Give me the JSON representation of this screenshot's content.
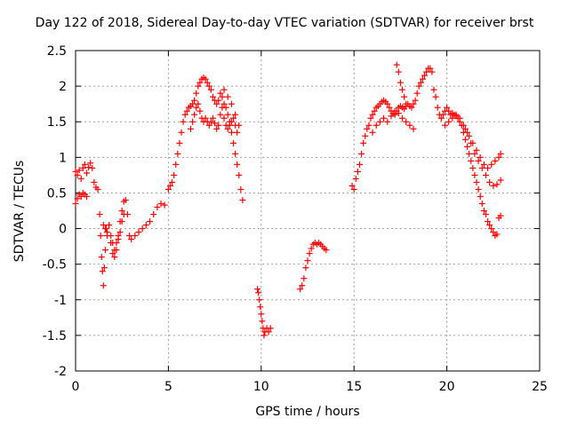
{
  "chart_data": {
    "type": "scatter",
    "title": "Day 122 of 2018, Sidereal Day-to-day VTEC variation (SDTVAR) for receiver brst",
    "xlabel": "GPS time / hours",
    "ylabel": "SDTVAR / TECUs",
    "xlim": [
      0,
      25
    ],
    "ylim": [
      -2,
      2.5
    ],
    "xticks": [
      0,
      5,
      10,
      15,
      20,
      25
    ],
    "yticks": [
      -2,
      -1.5,
      -1,
      -0.5,
      0,
      0.5,
      1,
      1.5,
      2,
      2.5
    ],
    "grid": true,
    "marker": "+",
    "color": "#ff0000",
    "series": [
      {
        "name": "SDTVAR",
        "segments": [
          {
            "x": [
              0.0,
              0.1,
              0.2,
              0.3,
              0.4,
              0.5,
              0.6,
              0.7,
              0.8,
              0.9,
              1.0,
              1.1,
              1.2
            ],
            "y": [
              0.8,
              0.75,
              0.82,
              0.7,
              0.85,
              0.9,
              0.78,
              0.86,
              0.92,
              0.85,
              0.65,
              0.58,
              0.55
            ]
          },
          {
            "x": [
              0.0,
              0.1,
              0.2,
              0.3,
              0.4,
              0.5,
              0.6
            ],
            "y": [
              0.35,
              0.42,
              0.48,
              0.45,
              0.5,
              0.48,
              0.45
            ]
          },
          {
            "x": [
              1.3,
              1.35,
              1.4,
              1.45,
              1.5,
              1.55,
              1.6,
              1.65,
              1.7,
              1.8,
              1.9,
              2.0,
              2.1,
              2.2,
              2.3,
              2.4,
              2.5,
              2.6,
              2.7,
              2.8,
              2.9,
              3.0,
              3.2,
              3.4,
              3.6,
              3.8,
              4.0,
              4.2,
              4.4,
              4.6,
              4.8
            ],
            "y": [
              0.2,
              -0.1,
              -0.4,
              -0.6,
              -0.8,
              -0.55,
              -0.3,
              0.0,
              -0.1,
              0.05,
              -0.2,
              -0.35,
              -0.4,
              -0.3,
              -0.1,
              0.1,
              0.25,
              0.38,
              0.4,
              0.2,
              -0.1,
              -0.15,
              -0.1,
              -0.05,
              0.0,
              0.05,
              0.1,
              0.2,
              0.3,
              0.35,
              0.33
            ]
          },
          {
            "x": [
              1.5,
              1.6,
              1.7,
              1.8,
              1.9,
              2.0,
              2.1,
              2.2,
              2.3,
              2.4,
              2.5,
              2.6
            ],
            "y": [
              0.05,
              0.0,
              -0.05,
              0.05,
              -0.1,
              -0.2,
              -0.3,
              -0.2,
              -0.15,
              -0.05,
              0.1,
              0.2
            ]
          },
          {
            "x": [
              5.0,
              5.1,
              5.2,
              5.3,
              5.4,
              5.5,
              5.6,
              5.7,
              5.8,
              5.9,
              6.0,
              6.1,
              6.2,
              6.3,
              6.4,
              6.5,
              6.6,
              6.7,
              6.8,
              6.9,
              7.0,
              7.1,
              7.2,
              7.3,
              7.4,
              7.5,
              7.6,
              7.7,
              7.8,
              7.9,
              8.0,
              8.1,
              8.2,
              8.3,
              8.4,
              8.5,
              8.6,
              8.7,
              8.8,
              8.9,
              9.0
            ],
            "y": [
              0.55,
              0.6,
              0.65,
              0.75,
              0.9,
              1.05,
              1.2,
              1.35,
              1.5,
              1.6,
              1.65,
              1.7,
              1.72,
              1.75,
              1.8,
              1.9,
              2.0,
              2.05,
              2.1,
              2.12,
              2.1,
              2.05,
              2.0,
              1.95,
              1.85,
              1.8,
              1.75,
              1.8,
              1.9,
              1.85,
              1.75,
              1.7,
              1.6,
              1.5,
              1.35,
              1.2,
              1.05,
              0.9,
              0.75,
              0.55,
              0.4
            ]
          },
          {
            "x": [
              6.2,
              6.3,
              6.4,
              6.5,
              6.6,
              6.7,
              6.8,
              6.9,
              7.0,
              7.1,
              7.2,
              7.3,
              7.4,
              7.5,
              7.6,
              7.7,
              7.8,
              7.9,
              8.0,
              8.1,
              8.2,
              8.3,
              8.4,
              8.5,
              8.6,
              8.7
            ],
            "y": [
              1.4,
              1.5,
              1.6,
              1.7,
              1.75,
              1.65,
              1.55,
              1.5,
              1.55,
              1.5,
              1.45,
              1.5,
              1.55,
              1.48,
              1.4,
              1.45,
              1.6,
              1.7,
              1.55,
              1.45,
              1.4,
              1.45,
              1.5,
              1.55,
              1.45,
              1.35
            ]
          },
          {
            "x": [
              8.0,
              8.2,
              8.4,
              8.6,
              8.8
            ],
            "y": [
              1.95,
              1.85,
              1.75,
              1.6,
              1.45
            ]
          },
          {
            "x": [
              9.8,
              9.85,
              9.9,
              9.95,
              10.0,
              10.05,
              10.1,
              10.15,
              10.2,
              10.3,
              10.4,
              10.5
            ],
            "y": [
              -0.85,
              -0.9,
              -1.0,
              -1.1,
              -1.2,
              -1.3,
              -1.4,
              -1.5,
              -1.45,
              -1.4,
              -1.45,
              -1.4
            ]
          },
          {
            "x": [
              12.1,
              12.2,
              12.3,
              12.4,
              12.5,
              12.6,
              12.7,
              12.8,
              12.9,
              13.0,
              13.1,
              13.2,
              13.3,
              13.4,
              13.5
            ],
            "y": [
              -0.85,
              -0.8,
              -0.7,
              -0.55,
              -0.45,
              -0.35,
              -0.28,
              -0.22,
              -0.2,
              -0.22,
              -0.2,
              -0.22,
              -0.25,
              -0.28,
              -0.3
            ]
          },
          {
            "x": [
              14.9,
              15.0,
              15.1,
              15.2,
              15.3,
              15.4,
              15.5,
              15.6,
              15.7,
              15.8,
              15.9,
              16.0,
              16.1,
              16.2,
              16.3,
              16.4,
              16.5,
              16.6,
              16.7,
              16.8,
              16.9,
              17.0,
              17.1,
              17.2,
              17.3,
              17.4,
              17.5,
              17.6,
              17.7,
              17.8,
              17.9,
              18.0,
              18.1,
              18.2,
              18.3,
              18.4,
              18.5,
              18.6,
              18.7,
              18.8,
              18.9,
              19.0,
              19.1,
              19.2
            ],
            "y": [
              0.6,
              0.55,
              0.7,
              0.8,
              0.9,
              1.05,
              1.2,
              1.3,
              1.4,
              1.45,
              1.55,
              1.6,
              1.65,
              1.7,
              1.72,
              1.75,
              1.78,
              1.8,
              1.78,
              1.75,
              1.7,
              1.65,
              1.62,
              1.6,
              1.65,
              1.7,
              1.72,
              1.7,
              1.68,
              1.72,
              1.75,
              1.72,
              1.7,
              1.75,
              1.8,
              1.9,
              2.0,
              2.05,
              2.1,
              2.15,
              2.2,
              2.25,
              2.25,
              2.2
            ]
          },
          {
            "x": [
              16.0,
              16.2,
              16.4,
              16.6,
              16.8,
              17.0,
              17.2,
              17.4,
              17.6,
              17.8,
              18.0,
              18.2
            ],
            "y": [
              1.35,
              1.45,
              1.5,
              1.55,
              1.5,
              1.58,
              1.65,
              1.62,
              1.55,
              1.5,
              1.45,
              1.4
            ]
          },
          {
            "x": [
              17.3,
              17.4,
              17.5,
              17.6,
              17.7,
              17.8
            ],
            "y": [
              2.3,
              2.2,
              2.05,
              1.95,
              1.85,
              1.75
            ]
          },
          {
            "x": [
              19.3,
              19.4,
              19.5,
              19.6,
              19.7,
              19.8,
              19.9,
              20.0,
              20.1,
              20.2,
              20.3,
              20.4,
              20.5,
              20.6,
              20.7,
              20.8,
              20.9,
              21.0,
              21.1,
              21.2,
              21.3,
              21.4,
              21.5,
              21.6,
              21.7,
              21.8,
              21.9,
              22.0,
              22.1,
              22.2,
              22.3,
              22.4,
              22.5,
              22.6,
              22.7,
              22.8,
              22.9
            ],
            "y": [
              1.95,
              1.85,
              1.7,
              1.6,
              1.55,
              1.6,
              1.65,
              1.7,
              1.65,
              1.6,
              1.62,
              1.6,
              1.58,
              1.55,
              1.5,
              1.45,
              1.35,
              1.25,
              1.15,
              1.05,
              0.95,
              0.85,
              0.75,
              0.65,
              0.55,
              0.45,
              0.35,
              0.25,
              0.2,
              0.1,
              0.05,
              0.0,
              -0.05,
              -0.1,
              -0.08,
              0.15,
              0.18
            ]
          },
          {
            "x": [
              19.9,
              20.1,
              20.3,
              20.5,
              20.7,
              20.9,
              21.1,
              21.3,
              21.5,
              21.7,
              21.9,
              22.1,
              22.3,
              22.5,
              22.7,
              22.9
            ],
            "y": [
              1.45,
              1.5,
              1.55,
              1.6,
              1.55,
              1.45,
              1.35,
              1.2,
              1.05,
              0.95,
              0.85,
              0.75,
              0.65,
              0.6,
              0.62,
              0.68
            ]
          },
          {
            "x": [
              21.0,
              21.2,
              21.4,
              21.6,
              21.8,
              22.0,
              22.2,
              22.4,
              22.6,
              22.8,
              22.9
            ],
            "y": [
              1.4,
              1.3,
              1.2,
              1.1,
              1.0,
              0.9,
              0.85,
              0.9,
              0.95,
              1.0,
              1.05
            ]
          }
        ]
      }
    ]
  }
}
